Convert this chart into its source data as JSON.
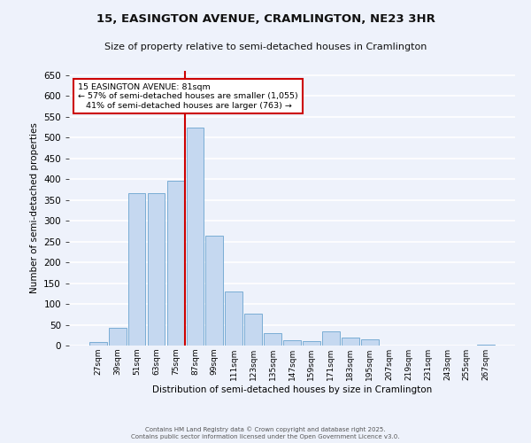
{
  "title_line1": "15, EASINGTON AVENUE, CRAMLINGTON, NE23 3HR",
  "title_line2": "Size of property relative to semi-detached houses in Cramlington",
  "xlabel": "Distribution of semi-detached houses by size in Cramlington",
  "ylabel": "Number of semi-detached properties",
  "categories": [
    "27sqm",
    "39sqm",
    "51sqm",
    "63sqm",
    "75sqm",
    "87sqm",
    "99sqm",
    "111sqm",
    "123sqm",
    "135sqm",
    "147sqm",
    "159sqm",
    "171sqm",
    "183sqm",
    "195sqm",
    "207sqm",
    "219sqm",
    "231sqm",
    "243sqm",
    "255sqm",
    "267sqm"
  ],
  "values": [
    8,
    42,
    367,
    367,
    395,
    524,
    263,
    130,
    77,
    30,
    12,
    10,
    35,
    20,
    15,
    0,
    0,
    0,
    0,
    0,
    3
  ],
  "bar_color": "#c5d8f0",
  "bar_edge_color": "#7aadd4",
  "vline_color": "#cc0000",
  "annotation_text": "15 EASINGTON AVENUE: 81sqm\n← 57% of semi-detached houses are smaller (1,055)\n   41% of semi-detached houses are larger (763) →",
  "annotation_box_color": "#ffffff",
  "annotation_box_edge": "#cc0000",
  "ylim": [
    0,
    660
  ],
  "yticks": [
    0,
    50,
    100,
    150,
    200,
    250,
    300,
    350,
    400,
    450,
    500,
    550,
    600,
    650
  ],
  "bg_color": "#eef2fb",
  "grid_color": "#ffffff",
  "footer_line1": "Contains HM Land Registry data © Crown copyright and database right 2025.",
  "footer_line2": "Contains public sector information licensed under the Open Government Licence v3.0."
}
